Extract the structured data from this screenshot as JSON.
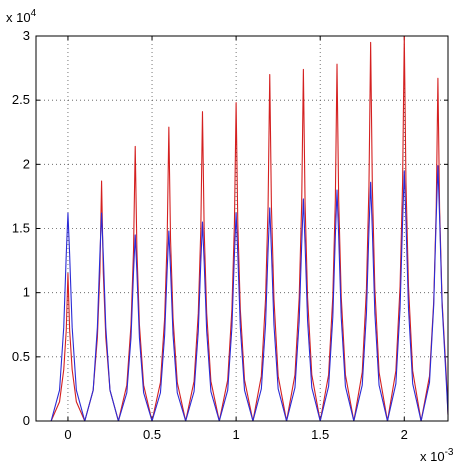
{
  "chart_data": {
    "type": "line",
    "y_multiplier": {
      "base": "x 10",
      "exponent": "4"
    },
    "x_multiplier": {
      "base": "x 10",
      "exponent": "-3"
    },
    "x": [
      -0.19,
      -0.1,
      -0.05,
      -0.025,
      -0.01,
      0,
      0.01,
      0.025,
      0.05,
      0.1,
      0.15,
      0.175,
      0.19,
      0.2,
      0.21,
      0.225,
      0.25,
      0.3,
      0.35,
      0.375,
      0.39,
      0.4,
      0.41,
      0.425,
      0.45,
      0.5,
      0.55,
      0.575,
      0.59,
      0.6,
      0.61,
      0.625,
      0.65,
      0.7,
      0.75,
      0.775,
      0.79,
      0.8,
      0.81,
      0.825,
      0.85,
      0.9,
      0.95,
      0.975,
      0.99,
      1,
      1.01,
      1.025,
      1.05,
      1.1,
      1.15,
      1.175,
      1.19,
      1.2,
      1.21,
      1.225,
      1.25,
      1.3,
      1.35,
      1.375,
      1.39,
      1.4,
      1.41,
      1.425,
      1.45,
      1.5,
      1.55,
      1.575,
      1.59,
      1.6,
      1.61,
      1.625,
      1.65,
      1.7,
      1.75,
      1.775,
      1.79,
      1.8,
      1.81,
      1.825,
      1.85,
      1.9,
      1.95,
      1.975,
      1.99,
      2,
      2.01,
      2.025,
      2.05,
      2.1,
      2.15,
      2.175,
      2.19,
      2.2,
      2.21,
      2.225,
      2.25,
      2.26
    ],
    "series": [
      {
        "color": "#d42020",
        "values": [
          0,
          0,
          0.15,
          0.4,
          0.71,
          1.15,
          0.71,
          0.4,
          0.15,
          0,
          0.24,
          0.65,
          1.16,
          1.87,
          1.16,
          0.65,
          0.24,
          0,
          0.28,
          0.75,
          1.33,
          2.14,
          1.33,
          0.75,
          0.28,
          0,
          0.3,
          0.8,
          1.42,
          2.29,
          1.42,
          0.8,
          0.3,
          0,
          0.31,
          0.84,
          1.49,
          2.41,
          1.49,
          0.84,
          0.31,
          0,
          0.32,
          0.87,
          1.54,
          2.48,
          1.54,
          0.87,
          0.32,
          0,
          0.35,
          0.95,
          1.67,
          2.7,
          1.67,
          0.95,
          0.35,
          0,
          0.36,
          0.96,
          1.7,
          2.74,
          1.7,
          0.96,
          0.36,
          0,
          0.36,
          0.97,
          1.72,
          2.78,
          1.72,
          0.97,
          0.36,
          0,
          0.38,
          1.03,
          1.83,
          2.95,
          1.83,
          1.03,
          0.38,
          0,
          0.39,
          1.05,
          1.86,
          3,
          1.86,
          1.05,
          0.39,
          0,
          0.35,
          0.93,
          1.66,
          2.67,
          1.66,
          0.93,
          0.35,
          0.05
        ]
      },
      {
        "color": "#2b2bd6",
        "values": [
          0,
          0,
          0.24,
          0.73,
          1.3,
          1.62,
          1.3,
          0.73,
          0.24,
          0,
          0.24,
          0.73,
          1.3,
          1.62,
          1.3,
          0.73,
          0.24,
          0,
          0.22,
          0.65,
          1.16,
          1.45,
          1.16,
          0.65,
          0.22,
          0,
          0.22,
          0.67,
          1.18,
          1.48,
          1.18,
          0.67,
          0.22,
          0,
          0.23,
          0.7,
          1.24,
          1.55,
          1.24,
          0.7,
          0.23,
          0,
          0.24,
          0.73,
          1.3,
          1.62,
          1.3,
          0.73,
          0.24,
          0,
          0.25,
          0.75,
          1.33,
          1.66,
          1.33,
          0.75,
          0.25,
          0,
          0.26,
          0.78,
          1.38,
          1.73,
          1.38,
          0.78,
          0.26,
          0,
          0.27,
          0.81,
          1.44,
          1.8,
          1.44,
          0.81,
          0.27,
          0,
          0.28,
          0.84,
          1.49,
          1.86,
          1.49,
          0.84,
          0.28,
          0,
          0.29,
          0.88,
          1.56,
          1.95,
          1.56,
          0.88,
          0.29,
          0,
          0.3,
          0.9,
          1.59,
          1.99,
          1.59,
          0.9,
          0.3,
          0.05
        ]
      }
    ],
    "xlim": [
      -0.19,
      2.26
    ],
    "ylim": [
      0,
      3
    ],
    "xticks": [
      0,
      0.5,
      1,
      1.5,
      2
    ],
    "yticks": [
      0,
      0.5,
      1,
      1.5,
      2,
      2.5,
      3
    ],
    "grid": true
  }
}
